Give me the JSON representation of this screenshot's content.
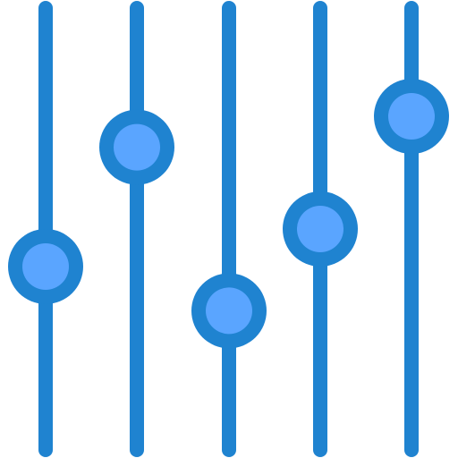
{
  "icon": {
    "name": "equalizer-sliders-icon",
    "colors": {
      "track": "#1f83d0",
      "knob_ring": "#1f83d0",
      "knob_fill": "#5aa5ff"
    },
    "sliders": [
      {
        "name": "slider-1",
        "level": 0.415
      },
      {
        "name": "slider-2",
        "level": 0.685
      },
      {
        "name": "slider-3",
        "level": 0.315
      },
      {
        "name": "slider-4",
        "level": 0.5
      },
      {
        "name": "slider-5",
        "level": 0.755
      }
    ]
  }
}
